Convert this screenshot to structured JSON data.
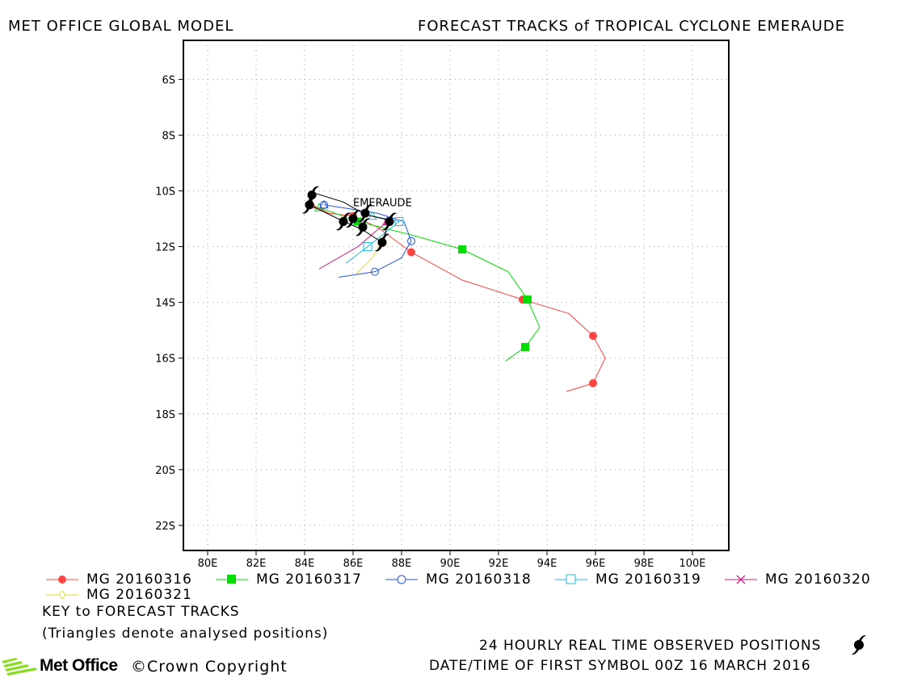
{
  "header": {
    "left": "MET OFFICE GLOBAL MODEL",
    "right": "FORECAST TRACKS of TROPICAL CYCLONE EMERAUDE"
  },
  "chart_data": {
    "type": "scatter",
    "xlim": [
      79,
      101.5
    ],
    "ylim": [
      -22.9,
      -4.6
    ],
    "x_ticks": [
      80,
      82,
      84,
      86,
      88,
      90,
      92,
      94,
      96,
      98,
      100
    ],
    "x_tick_labels": [
      "80E",
      "82E",
      "84E",
      "86E",
      "88E",
      "90E",
      "92E",
      "94E",
      "96E",
      "98E",
      "100E"
    ],
    "y_ticks": [
      -6,
      -8,
      -10,
      -12,
      -14,
      -16,
      -18,
      -20,
      -22
    ],
    "y_tick_labels": [
      "6S",
      "8S",
      "10S",
      "12S",
      "14S",
      "16S",
      "18S",
      "20S",
      "22S"
    ],
    "grid": true,
    "storm_label": "EMERAUDE",
    "observed_track": [
      [
        84.3,
        -10.05
      ],
      [
        85.6,
        -10.4
      ],
      [
        86.5,
        -10.85
      ],
      [
        87.5,
        -11.05
      ],
      [
        87.2,
        -11.85
      ],
      [
        86.4,
        -11.4
      ],
      [
        85.5,
        -11.05
      ],
      [
        84.2,
        -10.5
      ]
    ],
    "observed_symbols": [
      [
        84.3,
        -10.15
      ],
      [
        84.2,
        -10.5
      ],
      [
        85.6,
        -11.1
      ],
      [
        86.0,
        -11.0
      ],
      [
        86.5,
        -10.8
      ],
      [
        86.4,
        -11.3
      ],
      [
        87.5,
        -11.1
      ],
      [
        87.2,
        -11.85
      ]
    ],
    "series": [
      {
        "name": "MG 20160316",
        "color": "#ff4444",
        "marker": "circle-filled",
        "track": [
          [
            84.3,
            -10.5
          ],
          [
            85.0,
            -10.8
          ],
          [
            86.0,
            -10.9
          ],
          [
            87.0,
            -11.3
          ],
          [
            88.4,
            -12.2
          ],
          [
            90.5,
            -13.2
          ],
          [
            93.0,
            -13.9
          ],
          [
            94.9,
            -14.4
          ],
          [
            95.9,
            -15.2
          ],
          [
            96.4,
            -16.0
          ],
          [
            95.9,
            -16.9
          ],
          [
            94.8,
            -17.2
          ]
        ],
        "markers": [
          [
            86.0,
            -10.9
          ],
          [
            88.4,
            -12.2
          ],
          [
            93.0,
            -13.9
          ],
          [
            95.9,
            -15.2
          ],
          [
            95.9,
            -16.9
          ]
        ]
      },
      {
        "name": "MG 20160317",
        "color": "#00dd00",
        "marker": "square-filled",
        "track": [
          [
            84.6,
            -10.6
          ],
          [
            86.2,
            -11.1
          ],
          [
            88.5,
            -11.6
          ],
          [
            90.5,
            -12.1
          ],
          [
            92.4,
            -12.9
          ],
          [
            93.2,
            -13.9
          ],
          [
            93.7,
            -14.9
          ],
          [
            93.1,
            -15.6
          ],
          [
            92.3,
            -16.1
          ]
        ],
        "markers": [
          [
            86.2,
            -11.1
          ],
          [
            90.5,
            -12.1
          ],
          [
            93.2,
            -13.9
          ],
          [
            93.1,
            -15.6
          ]
        ]
      },
      {
        "name": "MG 20160318",
        "color": "#2255dd",
        "marker": "circle-open",
        "track": [
          [
            84.8,
            -10.5
          ],
          [
            87.0,
            -10.8
          ],
          [
            88.1,
            -11.1
          ],
          [
            88.4,
            -11.8
          ],
          [
            88.0,
            -12.4
          ],
          [
            86.9,
            -12.9
          ],
          [
            85.4,
            -13.1
          ]
        ],
        "markers": [
          [
            84.8,
            -10.5
          ],
          [
            88.4,
            -11.8
          ],
          [
            86.9,
            -12.9
          ]
        ]
      },
      {
        "name": "MG 20160319",
        "color": "#22bbdd",
        "marker": "square-open",
        "track": [
          [
            86.8,
            -10.9
          ],
          [
            87.9,
            -11.1
          ],
          [
            86.6,
            -12.0
          ],
          [
            85.7,
            -12.6
          ]
        ],
        "markers": [
          [
            87.9,
            -11.1
          ],
          [
            86.6,
            -12.0
          ]
        ]
      },
      {
        "name": "MG 20160320",
        "color": "#cc2288",
        "marker": "x",
        "track": [
          [
            87.4,
            -11.1
          ],
          [
            86.2,
            -12.0
          ],
          [
            84.6,
            -12.8
          ]
        ],
        "markers": [
          [
            87.4,
            -11.1
          ]
        ]
      },
      {
        "name": "MG 20160321",
        "color": "#dddd22",
        "marker": "diamond",
        "track": [
          [
            87.2,
            -11.8
          ],
          [
            86.8,
            -12.4
          ],
          [
            86.1,
            -13.0
          ]
        ],
        "markers": [
          [
            87.2,
            -11.8
          ]
        ]
      }
    ]
  },
  "notes": {
    "key": "KEY to FORECAST TRACKS",
    "triangles": "(Triangles denote analysed positions)"
  },
  "footer": {
    "observed": "24 HOURLY REAL TIME OBSERVED POSITIONS",
    "datetime": "DATE/TIME OF FIRST SYMBOL 00Z 16 MARCH 2016",
    "logo": "Met Office",
    "copyright": "©Crown Copyright"
  },
  "colors": {
    "grid": "#999999",
    "frame": "#000000",
    "observed": "#000000",
    "logo_green": "#88dd22"
  }
}
